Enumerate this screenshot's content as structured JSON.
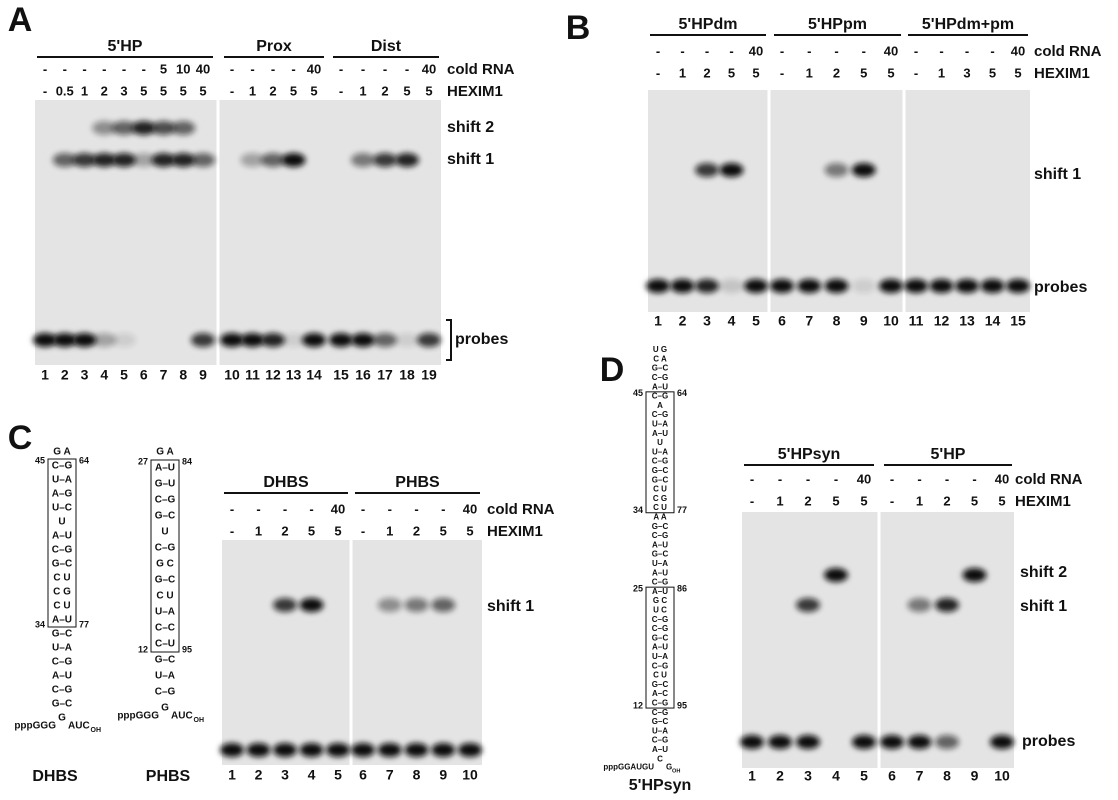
{
  "panels": [
    {
      "letter": "A",
      "row_labels": [
        "cold RNA",
        "HEXIM1"
      ],
      "bands": [
        "shift 2",
        "shift 1",
        "probes"
      ],
      "groups": [
        {
          "name": "5'HP",
          "cold_rna": [
            "-",
            "-",
            "-",
            "-",
            "-",
            "-",
            "5",
            "10",
            "40"
          ],
          "hexim1": [
            "-",
            "0.5",
            "1",
            "2",
            "3",
            "5",
            "5",
            "5",
            "5"
          ],
          "lanes": [
            "1",
            "2",
            "3",
            "4",
            "5",
            "6",
            "7",
            "8",
            "9"
          ]
        },
        {
          "name": "Prox",
          "cold_rna": [
            "-",
            "-",
            "-",
            "-",
            "40"
          ],
          "hexim1": [
            "-",
            "1",
            "2",
            "5",
            "5"
          ],
          "lanes": [
            "10",
            "11",
            "12",
            "13",
            "14"
          ]
        },
        {
          "name": "Dist",
          "cold_rna": [
            "-",
            "-",
            "-",
            "-",
            "40"
          ],
          "hexim1": [
            "-",
            "1",
            "2",
            "5",
            "5"
          ],
          "lanes": [
            "15",
            "16",
            "17",
            "18",
            "19"
          ]
        }
      ]
    },
    {
      "letter": "B",
      "row_labels": [
        "cold RNA",
        "HEXIM1"
      ],
      "bands": [
        "shift 1",
        "probes"
      ],
      "groups": [
        {
          "name": "5'HPdm",
          "cold_rna": [
            "-",
            "-",
            "-",
            "-",
            "40"
          ],
          "hexim1": [
            "-",
            "1",
            "2",
            "5",
            "5"
          ],
          "lanes": [
            "1",
            "2",
            "3",
            "4",
            "5"
          ]
        },
        {
          "name": "5'HPpm",
          "cold_rna": [
            "-",
            "-",
            "-",
            "-",
            "40"
          ],
          "hexim1": [
            "-",
            "1",
            "2",
            "5",
            "5"
          ],
          "lanes": [
            "6",
            "7",
            "8",
            "9",
            "10"
          ]
        },
        {
          "name": "5'HPdm+pm",
          "cold_rna": [
            "-",
            "-",
            "-",
            "-",
            "40"
          ],
          "hexim1": [
            "-",
            "1",
            "3",
            "5",
            "5"
          ],
          "lanes": [
            "11",
            "12",
            "13",
            "14",
            "15"
          ]
        }
      ]
    },
    {
      "letter": "C",
      "row_labels": [
        "cold RNA",
        "HEXIM1"
      ],
      "bands": [
        "shift 1"
      ],
      "groups": [
        {
          "name": "DHBS",
          "cold_rna": [
            "-",
            "-",
            "-",
            "-",
            "40"
          ],
          "hexim1": [
            "-",
            "1",
            "2",
            "5",
            "5"
          ],
          "lanes": [
            "1",
            "2",
            "3",
            "4",
            "5"
          ]
        },
        {
          "name": "PHBS",
          "cold_rna": [
            "-",
            "-",
            "-",
            "-",
            "40"
          ],
          "hexim1": [
            "-",
            "1",
            "2",
            "5",
            "5"
          ],
          "lanes": [
            "6",
            "7",
            "8",
            "9",
            "10"
          ]
        }
      ]
    },
    {
      "letter": "D",
      "row_labels": [
        "cold RNA",
        "HEXIM1"
      ],
      "bands": [
        "shift 2",
        "shift 1",
        "probes"
      ],
      "groups": [
        {
          "name": "5'HPsyn",
          "cold_rna": [
            "-",
            "-",
            "-",
            "-",
            "40"
          ],
          "hexim1": [
            "-",
            "1",
            "2",
            "5",
            "5"
          ],
          "lanes": [
            "1",
            "2",
            "3",
            "4",
            "5"
          ]
        },
        {
          "name": "5'HP",
          "cold_rna": [
            "-",
            "-",
            "-",
            "-",
            "40"
          ],
          "hexim1": [
            "-",
            "1",
            "2",
            "5",
            "5"
          ],
          "lanes": [
            "6",
            "7",
            "8",
            "9",
            "10"
          ]
        }
      ]
    }
  ],
  "structures": [
    {
      "name": "DHBS",
      "prefix": "pppGGG",
      "tail": "AUC",
      "end": "OH",
      "numbers": [
        "45",
        "64",
        "34",
        "77"
      ],
      "rows": [
        "G A",
        "C–G",
        "U–A",
        "A–G",
        "U–C",
        "U",
        "A–U",
        "C–G",
        "G–C",
        "C  U",
        "C  G",
        "C  U",
        "A–U",
        "G–C",
        "U–A",
        "C–G",
        "A–U",
        "C–G",
        "G–C",
        "G"
      ]
    },
    {
      "name": "PHBS",
      "prefix": "pppGGG",
      "tail": "AUC",
      "end": "OH",
      "numbers": [
        "27",
        "84",
        "12",
        "95"
      ],
      "rows": [
        "G A",
        "A–U",
        "G–U",
        "C–G",
        "G–C",
        "U",
        "C–G",
        "G  C",
        "G–C",
        "C  U",
        "U–A",
        "C–C",
        "C–U",
        "G–C",
        "U–A",
        "C–G",
        "G"
      ]
    },
    {
      "name": "5'HPsyn",
      "prefix": "pppGGAUGU",
      "tail": "G",
      "end": "OH",
      "numbers": [
        "45",
        "64",
        "34",
        "77",
        "25",
        "86",
        "12",
        "95"
      ],
      "rows": [
        "U G",
        "C A",
        "G–C",
        "C–G",
        "A–U",
        "C–G",
        "A",
        "C–G",
        "U–A",
        "A–U",
        "U",
        "U–A",
        "C–G",
        "G–C",
        "G–C",
        "C  U",
        "C  G",
        "C  U",
        "A  A",
        "G–C",
        "C–G",
        "A–U",
        "G–C",
        "U–A",
        "A–U",
        "C–G",
        "A–U",
        "G  C",
        "U  C",
        "C–G",
        "C–G",
        "G–C",
        "A–U",
        "U–A",
        "C–G",
        "C  U",
        "G–C",
        "A–C",
        "C–G",
        "C–G",
        "G–C",
        "U–A",
        "C–G",
        "A–U",
        "C"
      ]
    }
  ]
}
